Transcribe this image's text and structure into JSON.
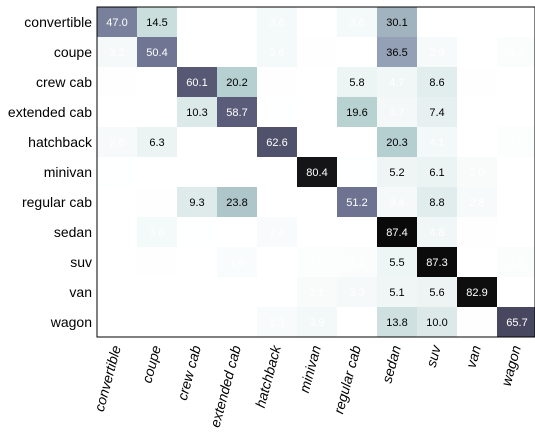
{
  "chart_data": {
    "type": "heatmap",
    "title": "",
    "xlabel": "",
    "ylabel": "",
    "rows": [
      "convertible",
      "coupe",
      "crew cab",
      "extended cab",
      "hatchback",
      "minivan",
      "regular cab",
      "sedan",
      "suv",
      "van",
      "wagon"
    ],
    "columns": [
      "convertible",
      "coupe",
      "crew cab",
      "extended cab",
      "hatchback",
      "minivan",
      "regular cab",
      "sedan",
      "suv",
      "van",
      "wagon"
    ],
    "values": [
      [
        "47.0",
        "14.5",
        "0.0",
        "0.0",
        "3.6",
        "0.0",
        "3.6",
        "30.1",
        "0.0",
        "0.0",
        ""
      ],
      [
        "3.2",
        "50.4",
        "0.0",
        "",
        "3.6",
        "0.4",
        "",
        "36.5",
        "2.9",
        "0.0",
        "1.2"
      ],
      [
        "0.3",
        "",
        "60.1",
        "20.2",
        "0.3",
        "",
        "5.8",
        "4.7",
        "8.6",
        "0.3",
        ""
      ],
      [
        "",
        "0.0",
        "10.3",
        "58.7",
        "0.2",
        "",
        "19.6",
        "3.7",
        "7.4",
        "",
        "0.0"
      ],
      [
        "2.6",
        "6.3",
        "",
        "0.0",
        "62.6",
        "",
        "",
        "20.3",
        "4.1",
        "",
        "1.1"
      ],
      [
        "0.2",
        "",
        "0.0",
        "0.0",
        "",
        "80.4",
        "0.2",
        "5.2",
        "6.1",
        "2.0",
        ""
      ],
      [
        "",
        "0.3",
        "9.3",
        "23.8",
        "",
        "",
        "51.2",
        "3.4",
        "8.8",
        "2.8",
        "0.0"
      ],
      [
        "",
        "3.6",
        "0.2",
        "0.1",
        "2.4",
        "",
        "",
        "87.4",
        "4.8",
        "0.3",
        ""
      ],
      [
        "0.0",
        "0.3",
        "",
        "1.9",
        "",
        "1.1",
        "1.3",
        "5.5",
        "87.3",
        "",
        "1.5"
      ],
      [
        "0.0",
        "",
        "",
        "",
        "0.0",
        "2.1",
        "3.3",
        "5.1",
        "5.6",
        "82.9",
        ""
      ],
      [
        "",
        "",
        "0.0",
        "",
        "2.3",
        "3.9",
        "",
        "13.8",
        "10.0",
        "0.4",
        "65.7"
      ]
    ],
    "grid": false,
    "legend": "none"
  }
}
